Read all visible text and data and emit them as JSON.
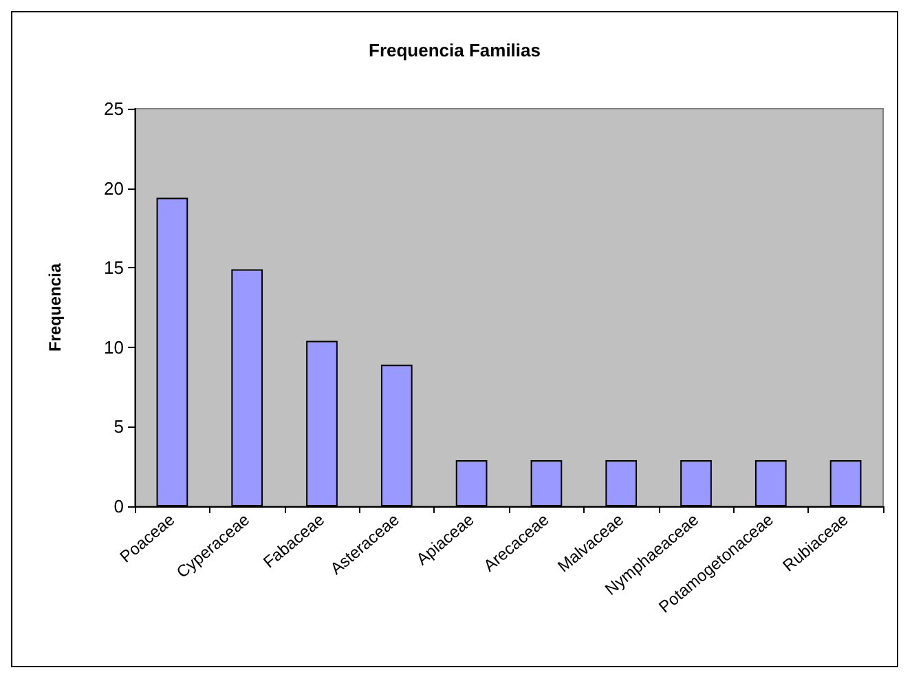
{
  "chart_data": {
    "type": "bar",
    "title": "Frequencia Familias",
    "ylabel": "Frequencia",
    "categories": [
      "Poaceae",
      "Cyperaceae",
      "Fabaceae",
      "Asteraceae",
      "Apiaceae",
      "Arecaceae",
      "Malvaceae",
      "Nymphaeaceae",
      "Potamogetonaceae",
      "Rubiaceae"
    ],
    "values": [
      19.4,
      14.9,
      10.4,
      8.9,
      2.9,
      2.9,
      2.9,
      2.9,
      2.9,
      2.9
    ],
    "color": "#9999ff",
    "ylim": [
      0,
      25
    ],
    "yticks": [
      0,
      5,
      10,
      15,
      20,
      25
    ],
    "grid": false
  }
}
